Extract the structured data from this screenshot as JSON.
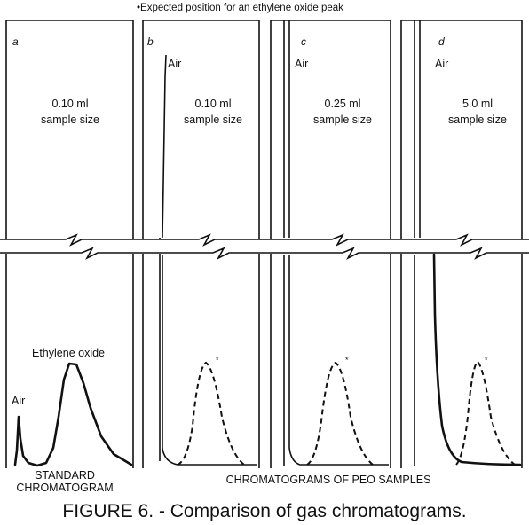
{
  "note": "•Expected position for an ethylene oxide peak",
  "panels": [
    {
      "letter": "a",
      "volume": "0.10 ml",
      "caption": "sample size",
      "air": "Air",
      "peak_label": "Ethylene oxide",
      "marker": ""
    },
    {
      "letter": "b",
      "volume": "0.10 ml",
      "caption": "sample size",
      "air": "Air",
      "peak_label": "",
      "marker": "*"
    },
    {
      "letter": "c",
      "volume": "0.25 ml",
      "caption": "sample size",
      "air": "Air",
      "peak_label": "",
      "marker": "*"
    },
    {
      "letter": "d",
      "volume": "5.0 ml",
      "caption": "sample size",
      "air": "Air",
      "peak_label": "",
      "marker": "*"
    }
  ],
  "bottom_labels": {
    "standard_line1": "STANDARD",
    "standard_line2": "CHROMATOGRAM",
    "samples": "CHROMATOGRAMS OF PEO SAMPLES"
  },
  "title": "FIGURE 6. - Comparison of gas chromatograms."
}
